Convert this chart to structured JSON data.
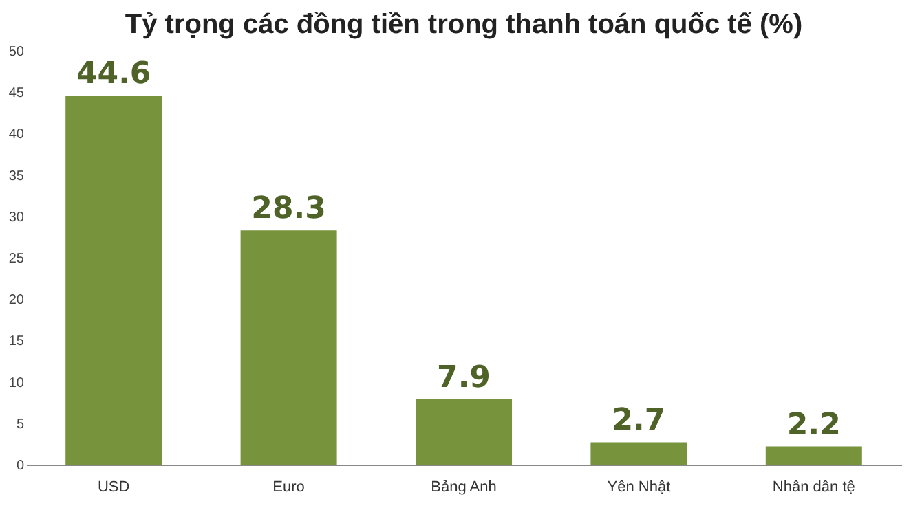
{
  "chart_data": {
    "type": "bar",
    "title": "Tỷ trọng các đồng tiền trong thanh toán quốc tế (%)",
    "categories": [
      "USD",
      "Euro",
      "Bảng Anh",
      "Yên Nhật",
      "Nhân dân tệ"
    ],
    "values": [
      44.6,
      28.3,
      7.9,
      2.7,
      2.2
    ],
    "color": "#77933c",
    "ylim": [
      0,
      50
    ],
    "yticks": [
      0,
      5,
      10,
      15,
      20,
      25,
      30,
      35,
      40,
      45,
      50
    ],
    "grid": false,
    "data_labels": true
  }
}
